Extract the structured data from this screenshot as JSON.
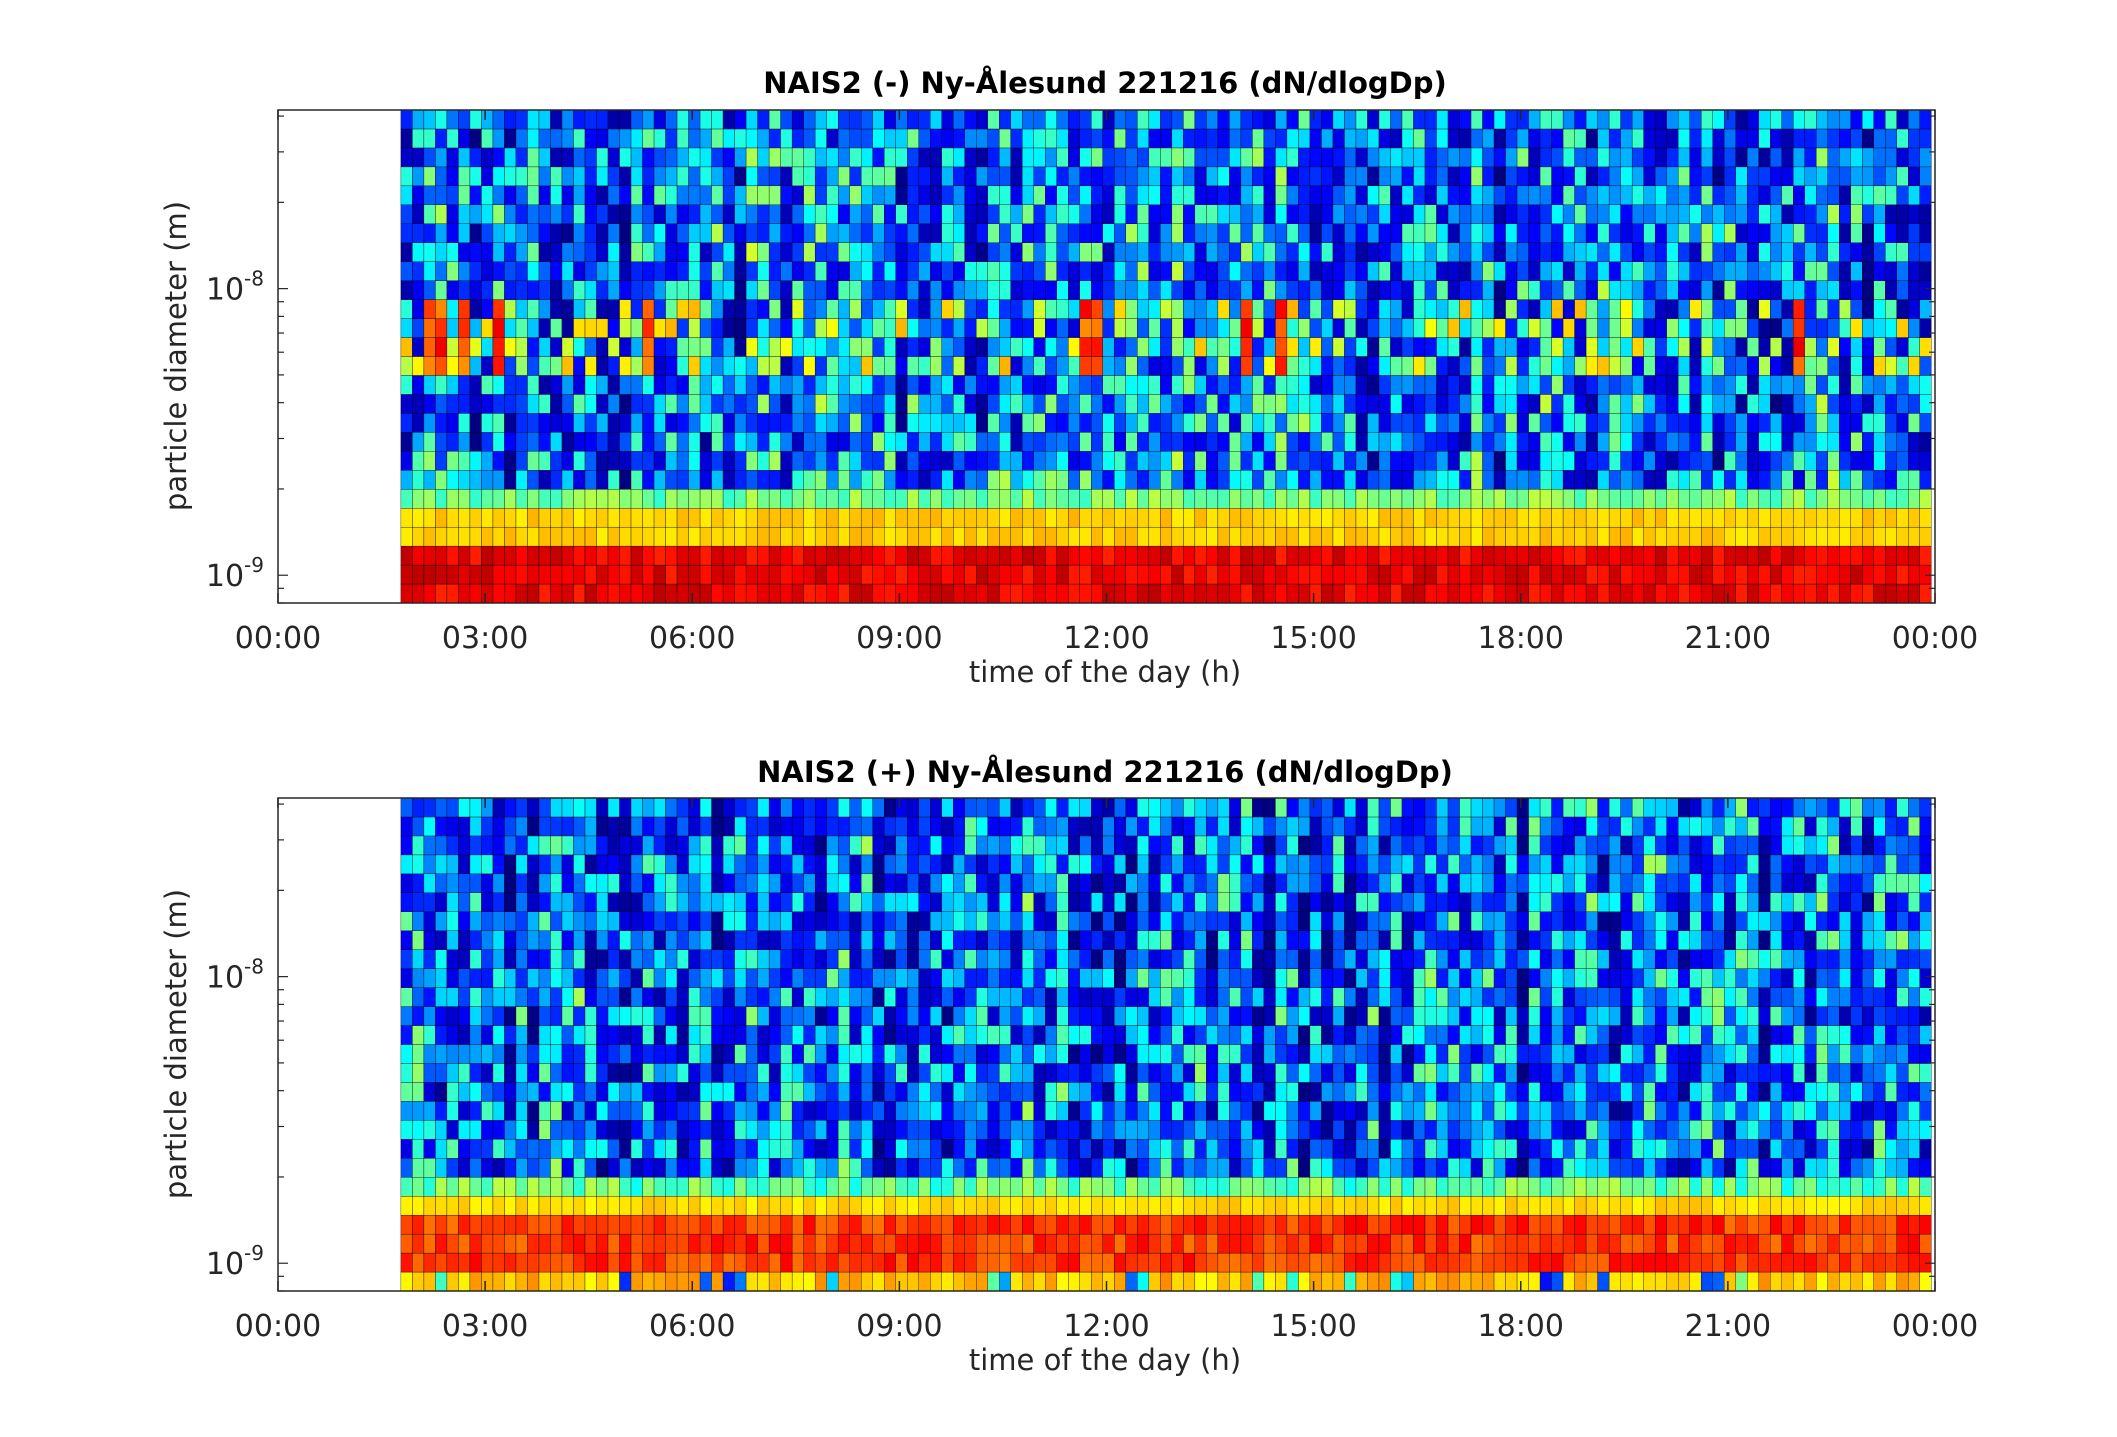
{
  "colors": {
    "colormap": "jet",
    "background": "#ffffff",
    "axis": "#262626",
    "cell_edge": "#000000"
  },
  "chart_data": [
    {
      "type": "heatmap",
      "title": "NAIS2 (-) Ny-Ålesund 221216 (dN/dlogDp)",
      "xlabel": "time of the day (h)",
      "ylabel": "particle diameter (m)",
      "x_ticks": [
        "00:00",
        "03:00",
        "06:00",
        "09:00",
        "12:00",
        "15:00",
        "18:00",
        "21:00",
        "00:00"
      ],
      "y_ticks": [
        {
          "base": "10",
          "exponent": "-9",
          "value": 1e-09
        },
        {
          "base": "10",
          "exponent": "-8",
          "value": 1e-08
        }
      ],
      "xlim": [
        0,
        24
      ],
      "ylim": [
        8e-10,
        4.2e-08
      ],
      "yscale": "log",
      "data_start_hour": 1.78,
      "time_step_minutes": 10,
      "diameter_bins": 26,
      "color_scale": "log",
      "features": "Elevated concentrations (red) below ~1.3e-9 m throughout 01:45–24:00; yellow band near 1.5e-9 m; mostly low (dark blue to cyan) concentrations above 2e-9 m with intermittent yellow/red spikes around 6e-9 m near 02:10, 02:40, 05:20, 14:00, 14:30 and 22:00.",
      "grid": false
    },
    {
      "type": "heatmap",
      "title": "NAIS2 (+) Ny-Ålesund 221216 (dN/dlogDp)",
      "xlabel": "time of the day (h)",
      "ylabel": "particle diameter (m)",
      "x_ticks": [
        "00:00",
        "03:00",
        "06:00",
        "09:00",
        "12:00",
        "15:00",
        "18:00",
        "21:00",
        "00:00"
      ],
      "y_ticks": [
        {
          "base": "10",
          "exponent": "-9",
          "value": 1e-09
        },
        {
          "base": "10",
          "exponent": "-8",
          "value": 1e-08
        }
      ],
      "xlim": [
        0,
        24
      ],
      "ylim": [
        8e-10,
        4.2e-08
      ],
      "yscale": "log",
      "data_start_hour": 1.78,
      "time_step_minutes": 10,
      "diameter_bins": 26,
      "color_scale": "log",
      "features": "Orange/red band between ~9e-10 and 1.4e-9 m with yellow band near 1.6e-9 m throughout 01:45–24:00; low concentrations (dark blue to cyan, vertical streaks) at larger diameters.",
      "grid": false
    }
  ]
}
